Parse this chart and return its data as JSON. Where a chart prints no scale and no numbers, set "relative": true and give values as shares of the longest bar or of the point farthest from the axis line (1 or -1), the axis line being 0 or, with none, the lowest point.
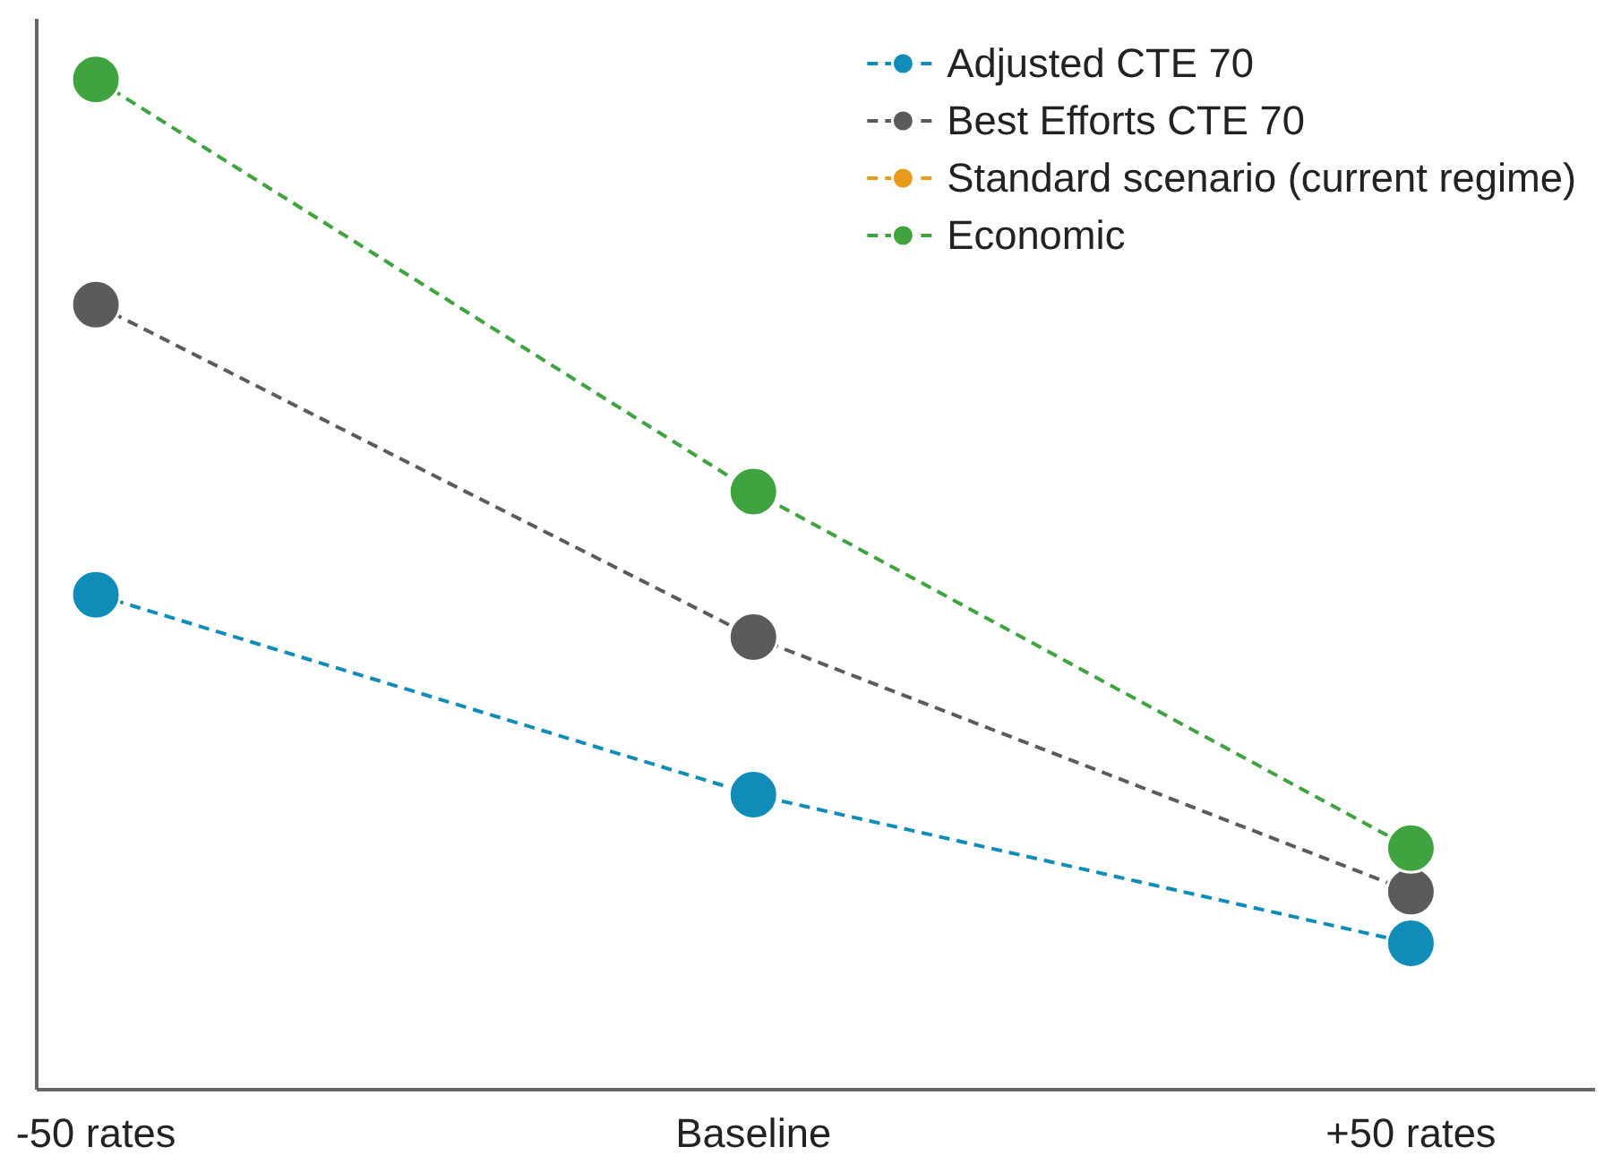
{
  "chart_data": {
    "type": "line",
    "relative": true,
    "categories": [
      "-50 rates",
      "Baseline",
      "+50 rates"
    ],
    "series": [
      {
        "name": "Adjusted CTE 70",
        "color": "#0f8cb8",
        "values": [
          0.49,
          0.292,
          0.145
        ]
      },
      {
        "name": "Best Efforts CTE 70",
        "color": "#5b5b5b",
        "values": [
          0.777,
          0.448,
          0.196
        ]
      },
      {
        "name": "Standard scenario (current regime)",
        "color": "#e89b1a",
        "values": [
          null,
          null,
          null
        ]
      },
      {
        "name": "Economic",
        "color": "#3fa33f",
        "values": [
          1,
          0.592,
          0.239
        ]
      }
    ],
    "marker": "circle",
    "line_style": "dashed",
    "legend": "top right",
    "grid": false
  }
}
